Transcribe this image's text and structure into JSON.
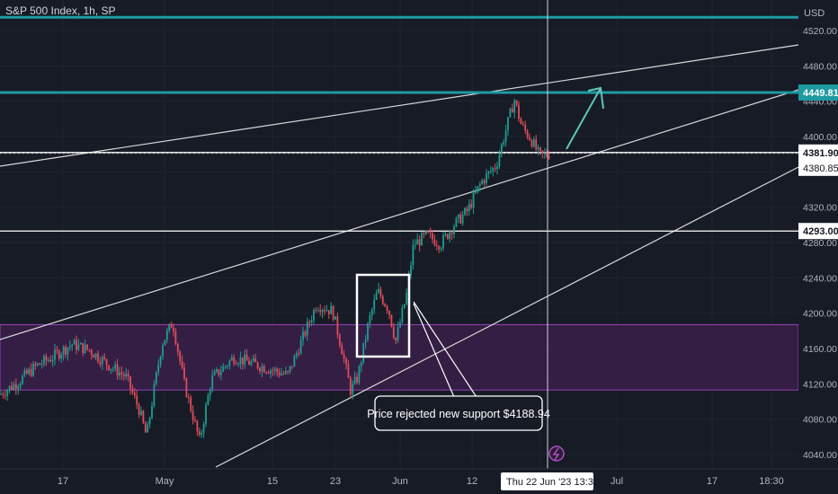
{
  "header": {
    "title": "S&P 500 Index, 1h, SP",
    "currency": "USD"
  },
  "colors": {
    "background": "#171b26",
    "teal_level": "#1e9aa0",
    "up_candle": "#1f9e8f",
    "down_candle": "#e14c5a",
    "support_zone_fill": "#3a1f4a",
    "support_zone_border": "#9a3fb8",
    "trendline": "#d8d8d8",
    "arrow": "#5fc7b6",
    "crosshair": "#cfd3dc",
    "lightning": "#b24dc9"
  },
  "chart_data": {
    "type": "candlestick",
    "symbol": "S&P 500 Index",
    "timeframe": "1h",
    "y_axis": {
      "ticks": [
        "4520.00",
        "4480.00",
        "4440.00",
        "4400.00",
        "4360.00",
        "4320.00",
        "4280.00",
        "4240.00",
        "4200.00",
        "4160.00",
        "4120.00",
        "4080.00",
        "4040.00"
      ],
      "tick_values": [
        4520,
        4480,
        4440,
        4400,
        4360,
        4320,
        4280,
        4240,
        4200,
        4160,
        4120,
        4080,
        4040
      ],
      "range": [
        4025,
        4537
      ]
    },
    "x_axis": {
      "ticks": [
        "17",
        "May",
        "15",
        "23",
        "Jun",
        "12",
        "22",
        "Jul",
        "17",
        "18:30"
      ]
    },
    "horizontal_levels": [
      {
        "name": "upper-teal-level",
        "value": 4535,
        "color": "teal",
        "label": ""
      },
      {
        "name": "resistance-level",
        "value": 4449.81,
        "color": "teal",
        "label": "4449.81"
      },
      {
        "name": "current-price-level",
        "value": 4381.9,
        "color": "white",
        "label": "4381.90"
      },
      {
        "name": "support-level",
        "value": 4293.0,
        "color": "white",
        "label": "4293.00"
      }
    ],
    "crosshair": {
      "price_label": "4380.85",
      "time_label": "Thu 22 Jun '23",
      "time_extra": "13:30"
    },
    "support_zone": {
      "from": 4113,
      "to": 4187
    },
    "annotation": {
      "text": "Price rejected new support $4188.94"
    },
    "price_path": [
      {
        "t": 0,
        "p": 4108
      },
      {
        "t": 20,
        "p": 4122
      },
      {
        "t": 40,
        "p": 4140
      },
      {
        "t": 58,
        "p": 4150
      },
      {
        "t": 80,
        "p": 4165
      },
      {
        "t": 100,
        "p": 4158
      },
      {
        "t": 120,
        "p": 4142
      },
      {
        "t": 140,
        "p": 4128
      },
      {
        "t": 155,
        "p": 4090
      },
      {
        "t": 163,
        "p": 4060
      },
      {
        "t": 172,
        "p": 4118
      },
      {
        "t": 180,
        "p": 4165
      },
      {
        "t": 192,
        "p": 4190
      },
      {
        "t": 205,
        "p": 4120
      },
      {
        "t": 222,
        "p": 4055
      },
      {
        "t": 235,
        "p": 4125
      },
      {
        "t": 260,
        "p": 4150
      },
      {
        "t": 290,
        "p": 4140
      },
      {
        "t": 320,
        "p": 4130
      },
      {
        "t": 340,
        "p": 4180
      },
      {
        "t": 352,
        "p": 4210
      },
      {
        "t": 370,
        "p": 4202
      },
      {
        "t": 380,
        "p": 4160
      },
      {
        "t": 390,
        "p": 4112
      },
      {
        "t": 398,
        "p": 4128
      },
      {
        "t": 410,
        "p": 4190
      },
      {
        "t": 420,
        "p": 4225
      },
      {
        "t": 432,
        "p": 4205
      },
      {
        "t": 440,
        "p": 4168
      },
      {
        "t": 452,
        "p": 4220
      },
      {
        "t": 460,
        "p": 4278
      },
      {
        "t": 475,
        "p": 4288
      },
      {
        "t": 490,
        "p": 4278
      },
      {
        "t": 505,
        "p": 4300
      },
      {
        "t": 520,
        "p": 4316
      },
      {
        "t": 535,
        "p": 4348
      },
      {
        "t": 552,
        "p": 4368
      },
      {
        "t": 562,
        "p": 4405
      },
      {
        "t": 572,
        "p": 4442
      },
      {
        "t": 580,
        "p": 4412
      },
      {
        "t": 590,
        "p": 4398
      },
      {
        "t": 600,
        "p": 4378
      },
      {
        "t": 612,
        "p": 4381
      }
    ]
  }
}
